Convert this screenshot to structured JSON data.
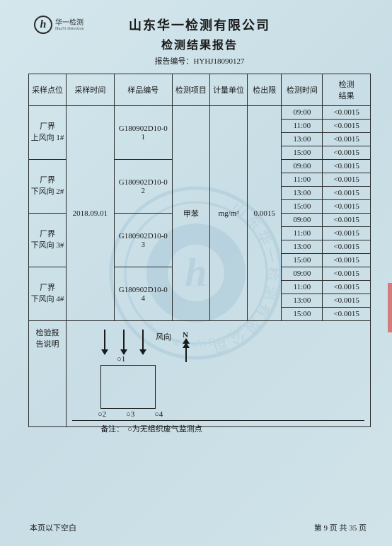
{
  "logo": {
    "mark": "h",
    "brand": "华一检测",
    "sub": "HuaYi Detection"
  },
  "header": {
    "company": "山东华一检测有限公司",
    "title": "检测结果报告",
    "report_no_label": "报告编号：",
    "report_no": "HYHJ18090127"
  },
  "columns": {
    "location": "采样点位",
    "sample_time": "采样时间",
    "sample_no": "样品编号",
    "item": "检测项目",
    "unit": "计量单位",
    "limit": "检出限",
    "time": "检测时间",
    "result": "检测\n结果"
  },
  "sample_date": "2018.09.01",
  "test_item": "甲苯",
  "unit": "mg/m³",
  "limit": "0.0015",
  "groups": [
    {
      "location": "厂界\n上风向 1#",
      "sample_no": "G180902D10-0\n1",
      "rows": [
        "09:00",
        "11:00",
        "13:00",
        "15:00"
      ]
    },
    {
      "location": "厂界\n下风向 2#",
      "sample_no": "G180902D10-0\n2",
      "rows": [
        "09:00",
        "11:00",
        "13:00",
        "15:00"
      ]
    },
    {
      "location": "厂界\n下风向 3#",
      "sample_no": "G180902D10-0\n3",
      "rows": [
        "09:00",
        "11:00",
        "13:00",
        "15:00"
      ]
    },
    {
      "location": "厂界\n下风向 4#",
      "sample_no": "G180902D10-0\n4",
      "rows": [
        "09:00",
        "11:00",
        "13:00",
        "15:00"
      ]
    }
  ],
  "result_value": "<0.0015",
  "explain_label": "检验报告说明",
  "diagram": {
    "wind": "风向",
    "north": "N",
    "points": [
      "○1",
      "○2",
      "○3",
      "○4"
    ],
    "note_label": "备注：",
    "note_text": "○为无组织废气监测点"
  },
  "footer": {
    "blank": "本页以下空白",
    "page_prefix": "第 ",
    "page_current": "9",
    "page_mid": " 页 共 ",
    "page_total": "35",
    "page_suffix": " 页"
  },
  "style": {
    "text_color": "#1a1a1a",
    "border_color": "#2a2a2a",
    "stamp_color": "#5a9abd"
  }
}
